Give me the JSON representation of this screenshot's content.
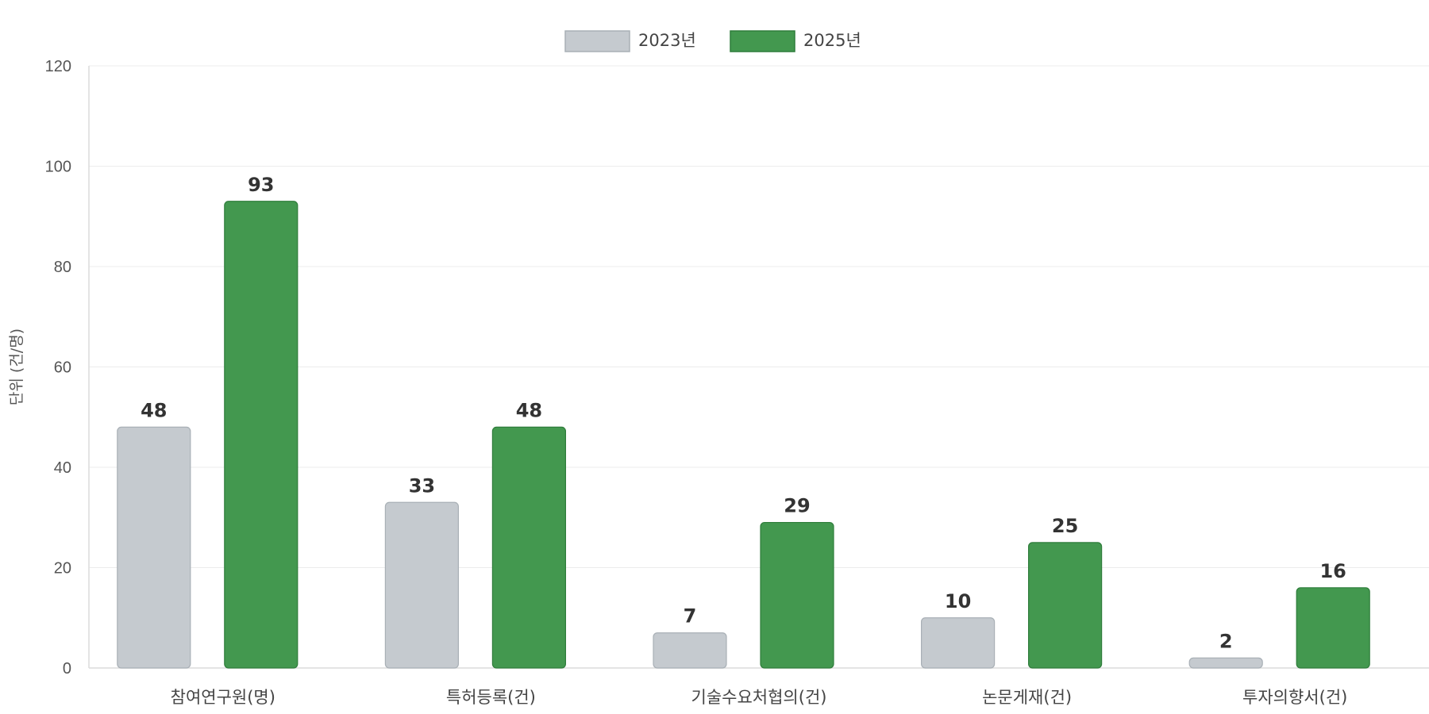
{
  "chart_data": {
    "type": "bar",
    "categories": [
      "참여연구원(명)",
      "특허등록(건)",
      "기술수요처협의(건)",
      "논문게재(건)",
      "투자의향서(건)"
    ],
    "series": [
      {
        "name": "2023년",
        "values": [
          48,
          33,
          7,
          10,
          2
        ],
        "color": "#c5cacf",
        "border": "#a9b0b6"
      },
      {
        "name": "2025년",
        "values": [
          93,
          48,
          29,
          25,
          16
        ],
        "color": "#43984f",
        "border": "#2f7d3b"
      }
    ],
    "ylabel": "단위 (건/명)",
    "ylim": [
      0,
      120
    ],
    "yticks": [
      0,
      20,
      40,
      60,
      80,
      100,
      120
    ],
    "grid": true,
    "legend_position": "top-center"
  }
}
